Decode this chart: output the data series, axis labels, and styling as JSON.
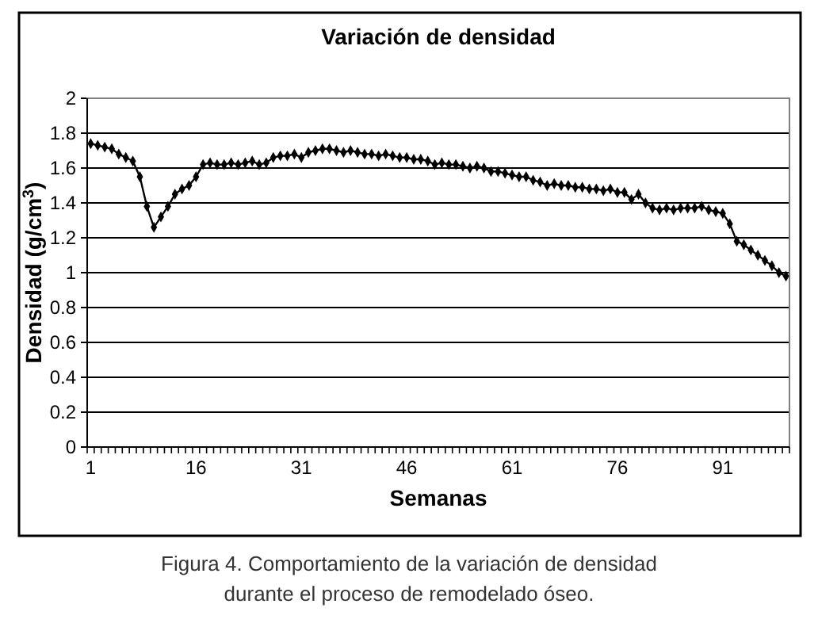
{
  "chart_data": {
    "type": "line",
    "title": "Variación de densidad",
    "xlabel": "Semanas",
    "ylabel": "Densidad (g/cm$^{3}$)",
    "categories": [
      "1",
      null,
      null,
      null,
      null,
      null,
      null,
      null,
      null,
      null,
      null,
      null,
      null,
      null,
      null,
      "16",
      null,
      null,
      null,
      null,
      null,
      null,
      null,
      null,
      null,
      null,
      null,
      null,
      null,
      null,
      "31",
      null,
      null,
      null,
      null,
      null,
      null,
      null,
      null,
      null,
      null,
      null,
      null,
      null,
      null,
      "46",
      null,
      null,
      null,
      null,
      null,
      null,
      null,
      null,
      null,
      null,
      null,
      null,
      null,
      null,
      "61",
      null,
      null,
      null,
      null,
      null,
      null,
      null,
      null,
      null,
      null,
      null,
      null,
      null,
      null,
      "76",
      null,
      null,
      null,
      null,
      null,
      null,
      null,
      null,
      null,
      null,
      null,
      null,
      null,
      null,
      "91",
      null,
      null,
      null,
      null,
      null,
      null,
      null,
      null,
      null
    ],
    "series": [
      {
        "color": "#000000",
        "values": [
          1.74,
          1.73,
          1.72,
          1.71,
          1.68,
          1.66,
          1.64,
          1.55,
          1.38,
          1.26,
          1.32,
          1.38,
          1.45,
          1.48,
          1.5,
          1.55,
          1.62,
          1.63,
          1.62,
          1.62,
          1.63,
          1.62,
          1.63,
          1.64,
          1.62,
          1.63,
          1.66,
          1.67,
          1.67,
          1.68,
          1.66,
          1.69,
          1.7,
          1.71,
          1.71,
          1.7,
          1.69,
          1.7,
          1.69,
          1.68,
          1.68,
          1.67,
          1.68,
          1.67,
          1.66,
          1.66,
          1.65,
          1.65,
          1.64,
          1.62,
          1.63,
          1.62,
          1.62,
          1.61,
          1.6,
          1.61,
          1.6,
          1.58,
          1.58,
          1.57,
          1.56,
          1.55,
          1.55,
          1.53,
          1.52,
          1.5,
          1.51,
          1.5,
          1.5,
          1.49,
          1.49,
          1.48,
          1.48,
          1.47,
          1.48,
          1.46,
          1.46,
          1.42,
          1.45,
          1.4,
          1.37,
          1.36,
          1.37,
          1.36,
          1.37,
          1.37,
          1.37,
          1.38,
          1.36,
          1.35,
          1.34,
          1.28,
          1.18,
          1.16,
          1.13,
          1.1,
          1.07,
          1.04,
          1.0,
          0.98
        ]
      }
    ],
    "ylim": [
      0,
      2
    ],
    "yticks": [
      0,
      0.2,
      0.4,
      0.6,
      0.8,
      1,
      1.2,
      1.4,
      1.6,
      1.8,
      2
    ],
    "grid": "y",
    "marker": "diamond",
    "line_style": "solid",
    "annotations": [
      "Figura 4. Comportamiento de la variación de densidad durante el proceso de remodelado óseo."
    ]
  }
}
